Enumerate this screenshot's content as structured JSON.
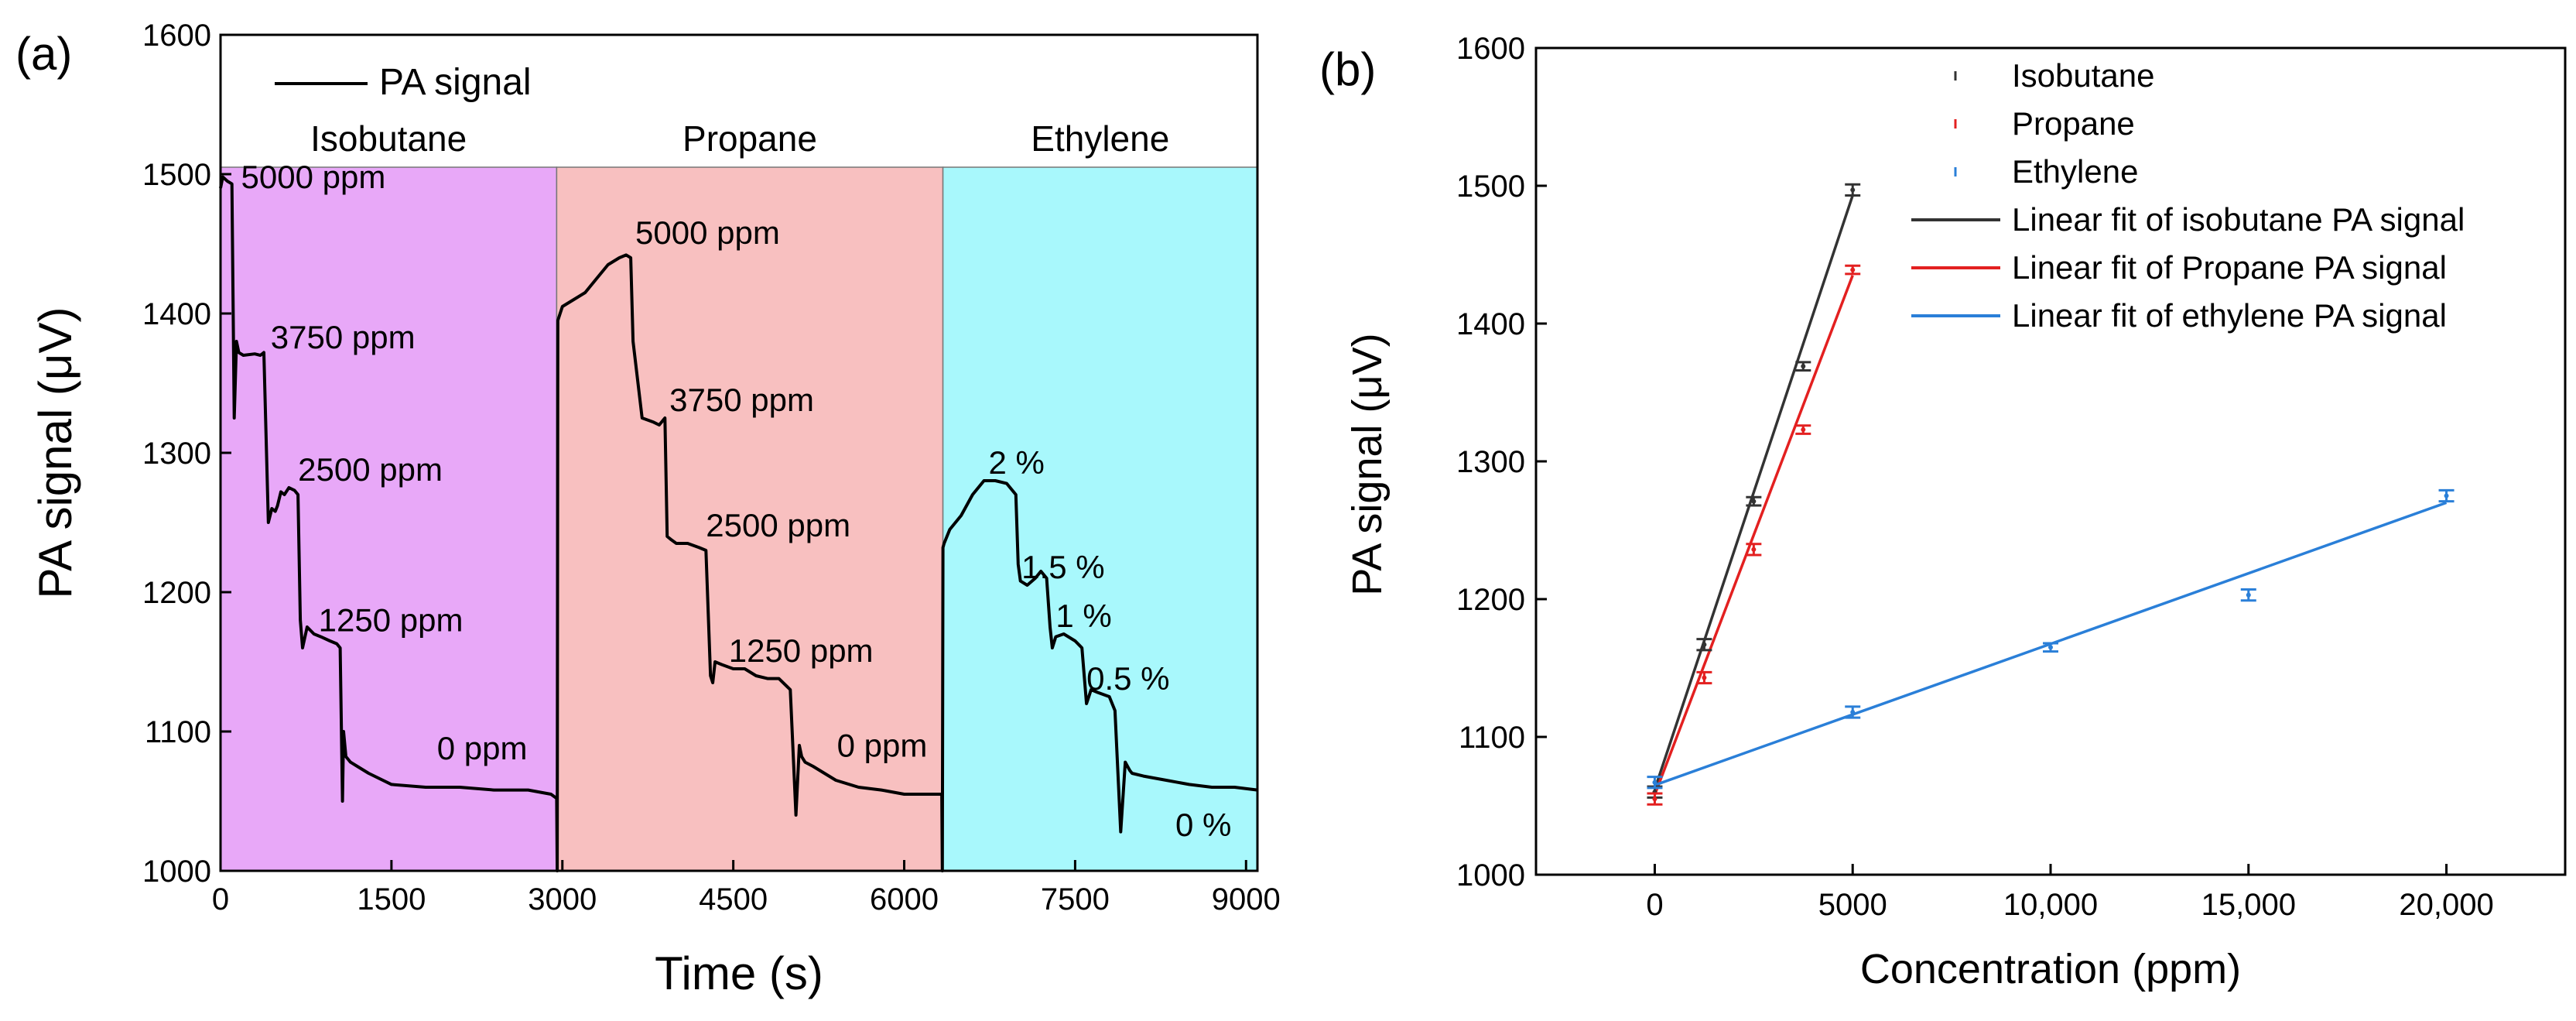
{
  "panel_a": {
    "label": "(a)"
  },
  "panel_b": {
    "label": "(b)"
  },
  "chart_data": [
    {
      "type": "line",
      "title": "",
      "xlabel": "Time (s)",
      "ylabel": "PA signal (μV)",
      "xlim": [
        0,
        9100
      ],
      "ylim": [
        1000,
        1600
      ],
      "xticks": [
        0,
        1500,
        3000,
        4500,
        6000,
        7500,
        9000
      ],
      "yticks": [
        1000,
        1100,
        1200,
        1300,
        1400,
        1500,
        1600
      ],
      "xtick_labels": [
        "0",
        "1500",
        "3000",
        "4500",
        "6000",
        "7500",
        "9000"
      ],
      "ytick_labels": [
        "1000",
        "1100",
        "1200",
        "1300",
        "1400",
        "1500",
        "1600"
      ],
      "legend": [
        "PA signal"
      ],
      "regions": [
        {
          "name": "Isobutane",
          "start": 0,
          "end": 2950,
          "top": 1505,
          "color": "#e8a8f8"
        },
        {
          "name": "Propane",
          "start": 2950,
          "end": 6340,
          "top": 1505,
          "color": "#f8c0c0"
        },
        {
          "name": "Ethylene",
          "start": 6340,
          "end": 9100,
          "top": 1505,
          "color": "#a8f8fc"
        }
      ],
      "annotations": [
        {
          "text": "5000 ppm",
          "x": 180,
          "y": 1490
        },
        {
          "text": "3750 ppm",
          "x": 440,
          "y": 1375
        },
        {
          "text": "2500 ppm",
          "x": 680,
          "y": 1280
        },
        {
          "text": "1250 ppm",
          "x": 860,
          "y": 1172
        },
        {
          "text": "0 ppm",
          "x": 1900,
          "y": 1080
        },
        {
          "text": "5000 ppm",
          "x": 3640,
          "y": 1450
        },
        {
          "text": "3750 ppm",
          "x": 3940,
          "y": 1330
        },
        {
          "text": "2500 ppm",
          "x": 4260,
          "y": 1240
        },
        {
          "text": "1250 ppm",
          "x": 4460,
          "y": 1150
        },
        {
          "text": "0 ppm",
          "x": 5410,
          "y": 1082
        },
        {
          "text": "2 %",
          "x": 6740,
          "y": 1285
        },
        {
          "text": "1.5 %",
          "x": 7030,
          "y": 1210
        },
        {
          "text": "1 %",
          "x": 7330,
          "y": 1175
        },
        {
          "text": "0.5 %",
          "x": 7600,
          "y": 1130
        },
        {
          "text": "0 %",
          "x": 8380,
          "y": 1025
        }
      ],
      "series": [
        {
          "name": "PA signal",
          "color": "#000000",
          "x": [
            0,
            20,
            60,
            100,
            120,
            140,
            160,
            200,
            300,
            350,
            380,
            420,
            450,
            480,
            500,
            530,
            560,
            600,
            650,
            680,
            700,
            720,
            760,
            820,
            880,
            960,
            1020,
            1050,
            1070,
            1080,
            1100,
            1140,
            1200,
            1300,
            1500,
            1800,
            2100,
            2400,
            2700,
            2900,
            2950,
            2955,
            2960,
            3000,
            3100,
            3200,
            3300,
            3400,
            3500,
            3560,
            3600,
            3620,
            3700,
            3800,
            3850,
            3900,
            3920,
            3950,
            4000,
            4100,
            4200,
            4260,
            4300,
            4320,
            4340,
            4400,
            4500,
            4600,
            4700,
            4800,
            4900,
            5000,
            5050,
            5080,
            5100,
            5130,
            5200,
            5400,
            5600,
            5800,
            6000,
            6200,
            6330,
            6335,
            6340,
            6350,
            6400,
            6500,
            6600,
            6700,
            6800,
            6900,
            6980,
            7000,
            7020,
            7080,
            7150,
            7200,
            7250,
            7280,
            7300,
            7330,
            7400,
            7500,
            7560,
            7600,
            7620,
            7640,
            7700,
            7800,
            7850,
            7900,
            7940,
            7960,
            7980,
            8000,
            8100,
            8300,
            8500,
            8700,
            8900,
            9100
          ],
          "values": [
            1490,
            1498,
            1495,
            1493,
            1325,
            1380,
            1372,
            1370,
            1371,
            1370,
            1372,
            1250,
            1260,
            1258,
            1262,
            1272,
            1270,
            1275,
            1273,
            1270,
            1180,
            1160,
            1175,
            1170,
            1168,
            1165,
            1163,
            1160,
            1050,
            1100,
            1082,
            1078,
            1075,
            1070,
            1062,
            1060,
            1060,
            1058,
            1058,
            1055,
            1052,
            1000,
            1395,
            1405,
            1410,
            1415,
            1425,
            1435,
            1440,
            1442,
            1440,
            1380,
            1325,
            1322,
            1320,
            1325,
            1240,
            1238,
            1235,
            1235,
            1232,
            1230,
            1140,
            1135,
            1150,
            1148,
            1145,
            1145,
            1140,
            1138,
            1138,
            1130,
            1040,
            1090,
            1082,
            1078,
            1075,
            1065,
            1060,
            1058,
            1055,
            1055,
            1055,
            1000,
            1232,
            1235,
            1245,
            1255,
            1270,
            1280,
            1280,
            1278,
            1270,
            1220,
            1208,
            1205,
            1210,
            1215,
            1210,
            1175,
            1160,
            1168,
            1170,
            1165,
            1160,
            1120,
            1125,
            1130,
            1128,
            1125,
            1115,
            1028,
            1078,
            1075,
            1072,
            1070,
            1068,
            1065,
            1062,
            1060,
            1060,
            1058
          ]
        }
      ]
    },
    {
      "type": "scatter",
      "title": "",
      "xlabel": "Concentration (ppm)",
      "ylabel": "PA signal (μV)",
      "xlim": [
        -3000,
        23000
      ],
      "ylim": [
        1000,
        1600
      ],
      "xticks": [
        0,
        5000,
        10000,
        15000,
        20000
      ],
      "yticks": [
        1000,
        1100,
        1200,
        1300,
        1400,
        1500,
        1600
      ],
      "xtick_labels": [
        "0",
        "5000",
        "10,000",
        "15,000",
        "20,000"
      ],
      "ytick_labels": [
        "1000",
        "1100",
        "1200",
        "1300",
        "1400",
        "1500",
        "1600"
      ],
      "series": [
        {
          "name": "Isobutane",
          "kind": "points",
          "color": "#333333",
          "x": [
            0,
            1250,
            2500,
            3750,
            5000
          ],
          "values": [
            1060,
            1167,
            1271,
            1369,
            1497
          ],
          "err": [
            4,
            4,
            3,
            3,
            4
          ]
        },
        {
          "name": "Propane",
          "kind": "points",
          "color": "#e32020",
          "x": [
            0,
            1250,
            2500,
            3750,
            5000
          ],
          "values": [
            1055,
            1143,
            1236,
            1323,
            1439
          ],
          "err": [
            4,
            4,
            4,
            3,
            3
          ]
        },
        {
          "name": "Ethylene",
          "kind": "points",
          "color": "#2a7fd8",
          "x": [
            0,
            5000,
            10000,
            15000,
            20000
          ],
          "values": [
            1067,
            1118,
            1165,
            1203,
            1275
          ],
          "err": [
            4,
            4,
            3,
            4,
            4
          ]
        },
        {
          "name": "Linear fit of isobutane PA signal",
          "kind": "line",
          "color": "#333333",
          "x": [
            0,
            5000
          ],
          "values": [
            1062,
            1493
          ]
        },
        {
          "name": "Linear fit of Propane PA signal",
          "kind": "line",
          "color": "#e32020",
          "x": [
            0,
            5000
          ],
          "values": [
            1058,
            1435
          ]
        },
        {
          "name": "Linear fit of ethylene PA signal",
          "kind": "line",
          "color": "#2a7fd8",
          "x": [
            0,
            20000
          ],
          "values": [
            1065,
            1270
          ]
        }
      ]
    }
  ]
}
